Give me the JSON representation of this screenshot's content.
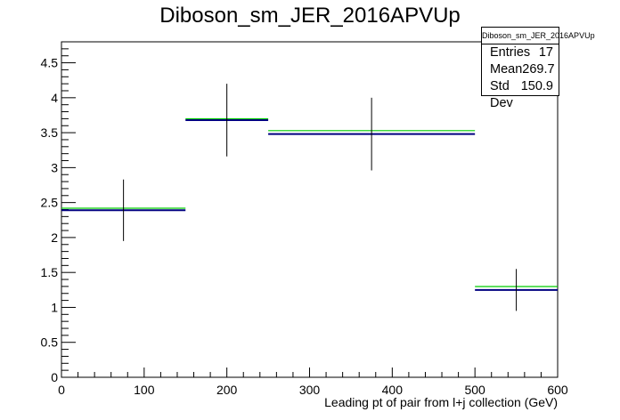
{
  "chart_data": {
    "type": "bar",
    "title": "Diboson_sm_JER_2016APVUp",
    "xlabel": "Leading pt of pair from l+j collection (GeV)",
    "ylabel": "",
    "xlim": [
      0,
      600
    ],
    "ylim": [
      0,
      4.8
    ],
    "x_ticks": [
      "0",
      "100",
      "200",
      "300",
      "400",
      "500",
      "600"
    ],
    "y_ticks": [
      "0",
      "0.5",
      "1",
      "1.5",
      "2",
      "2.5",
      "3",
      "3.5",
      "4",
      "4.5"
    ],
    "grid": false,
    "bins": [
      {
        "x_low": 0,
        "x_high": 150,
        "x_center": 75,
        "value": 2.39,
        "error": 0.44,
        "reference": 2.4
      },
      {
        "x_low": 150,
        "x_high": 250,
        "x_center": 200,
        "value": 3.68,
        "error": 0.52,
        "reference": 3.68
      },
      {
        "x_low": 250,
        "x_high": 500,
        "x_center": 375,
        "value": 3.48,
        "error": 0.52,
        "reference": 3.51
      },
      {
        "x_low": 500,
        "x_high": 600,
        "x_center": 550,
        "value": 1.25,
        "error": 0.3,
        "reference": 1.28
      }
    ],
    "series_colors": {
      "nominal": "#000080",
      "reference": "#00cc00",
      "errors": "#000000"
    },
    "stats_box": {
      "name": "Diboson_sm_JER_2016APVUp",
      "rows": [
        {
          "label": "Entries",
          "value": "17"
        },
        {
          "label": "Mean",
          "value": "269.7"
        },
        {
          "label": "Std Dev",
          "value": "150.9"
        }
      ]
    }
  }
}
